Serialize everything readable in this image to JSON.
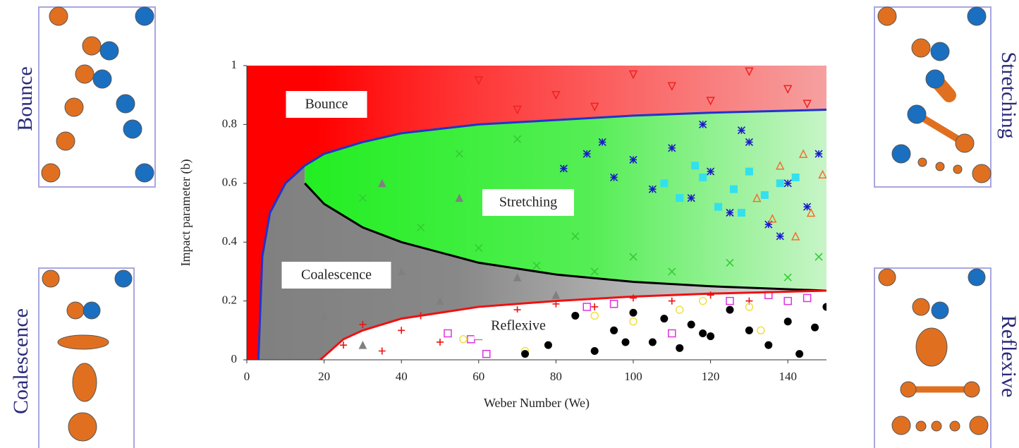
{
  "chart_data": {
    "type": "scatter",
    "xlabel": "Weber Number (We)",
    "ylabel": "Impact parameter (b)",
    "xlim": [
      0,
      150
    ],
    "ylim": [
      0,
      1
    ],
    "xticks": [
      0,
      20,
      40,
      60,
      80,
      100,
      120,
      140
    ],
    "yticks": [
      0,
      0.2,
      0.4,
      0.6,
      0.8,
      1
    ],
    "annotations": [
      "Bounce",
      "Stretching",
      "Coalescence",
      "Reflexive"
    ],
    "curves": [
      {
        "color": "#2233cc",
        "x": [
          3,
          4,
          6,
          10,
          15,
          20,
          30,
          40,
          60,
          80,
          100,
          120,
          150
        ],
        "y": [
          0,
          0.35,
          0.5,
          0.6,
          0.66,
          0.7,
          0.74,
          0.77,
          0.8,
          0.815,
          0.83,
          0.84,
          0.85
        ]
      },
      {
        "color": "#000000",
        "x": [
          15,
          20,
          30,
          40,
          60,
          80,
          100,
          120,
          150
        ],
        "y": [
          0.6,
          0.53,
          0.45,
          0.4,
          0.33,
          0.29,
          0.265,
          0.25,
          0.235
        ]
      },
      {
        "color": "#ee1111",
        "x": [
          19,
          25,
          30,
          40,
          60,
          80,
          100,
          120,
          150
        ],
        "y": [
          0,
          0.07,
          0.1,
          0.14,
          0.18,
          0.2,
          0.215,
          0.225,
          0.235
        ]
      }
    ],
    "groups": [
      {
        "color": "#ee2222",
        "marker": "triangle-down",
        "filled": false,
        "x": [
          60,
          80,
          100,
          120,
          140,
          70,
          110,
          130,
          145,
          90
        ],
        "y": [
          0.95,
          0.9,
          0.97,
          0.88,
          0.92,
          0.85,
          0.93,
          0.98,
          0.87,
          0.86
        ]
      },
      {
        "color": "#808080",
        "marker": "triangle",
        "filled": true,
        "x": [
          10,
          20,
          30,
          40,
          50,
          60,
          70,
          80,
          35,
          55
        ],
        "y": [
          0.3,
          0.15,
          0.05,
          0.3,
          0.2,
          0.08,
          0.28,
          0.22,
          0.6,
          0.55
        ]
      },
      {
        "color": "#33cc33",
        "marker": "cross",
        "filled": false,
        "x": [
          30,
          45,
          60,
          75,
          90,
          100,
          110,
          125,
          140,
          148,
          55,
          70,
          85
        ],
        "y": [
          0.55,
          0.45,
          0.38,
          0.32,
          0.3,
          0.35,
          0.3,
          0.33,
          0.28,
          0.35,
          0.7,
          0.75,
          0.42
        ]
      },
      {
        "color": "#1a1acc",
        "marker": "star",
        "filled": false,
        "x": [
          82,
          88,
          95,
          100,
          105,
          110,
          115,
          120,
          125,
          130,
          135,
          140,
          145,
          148,
          92,
          118,
          128,
          138
        ],
        "y": [
          0.65,
          0.7,
          0.62,
          0.68,
          0.58,
          0.72,
          0.55,
          0.64,
          0.5,
          0.74,
          0.46,
          0.6,
          0.52,
          0.7,
          0.74,
          0.8,
          0.78,
          0.42
        ]
      },
      {
        "color": "#33e0ee",
        "marker": "square",
        "filled": true,
        "x": [
          108,
          112,
          118,
          122,
          126,
          130,
          134,
          138,
          142,
          116,
          128
        ],
        "y": [
          0.6,
          0.55,
          0.62,
          0.52,
          0.58,
          0.64,
          0.56,
          0.6,
          0.62,
          0.66,
          0.5
        ]
      },
      {
        "color": "#f07030",
        "marker": "triangle",
        "filled": false,
        "x": [
          132,
          138,
          142,
          146,
          149,
          144,
          136
        ],
        "y": [
          0.55,
          0.66,
          0.42,
          0.5,
          0.63,
          0.7,
          0.48
        ]
      },
      {
        "color": "#ee1111",
        "marker": "plus",
        "filled": false,
        "x": [
          25,
          30,
          35,
          40,
          45,
          50,
          60,
          70,
          80,
          90,
          100,
          110,
          120,
          130
        ],
        "y": [
          0.05,
          0.12,
          0.03,
          0.1,
          0.15,
          0.06,
          0.13,
          0.17,
          0.19,
          0.18,
          0.21,
          0.2,
          0.22,
          0.2
        ]
      },
      {
        "color": "#dd33dd",
        "marker": "square",
        "filled": false,
        "x": [
          52,
          58,
          62,
          88,
          95,
          110,
          125,
          135,
          140,
          145
        ],
        "y": [
          0.09,
          0.07,
          0.02,
          0.18,
          0.19,
          0.09,
          0.2,
          0.22,
          0.2,
          0.21
        ]
      },
      {
        "color": "#f0e040",
        "marker": "circle",
        "filled": false,
        "x": [
          56,
          72,
          78,
          90,
          100,
          112,
          118,
          130,
          133
        ],
        "y": [
          0.07,
          0.03,
          0.14,
          0.15,
          0.13,
          0.17,
          0.2,
          0.18,
          0.1
        ]
      },
      {
        "color": "#000000",
        "marker": "circle",
        "filled": true,
        "x": [
          72,
          78,
          85,
          90,
          95,
          100,
          105,
          108,
          112,
          115,
          120,
          125,
          130,
          135,
          140,
          143,
          147,
          150,
          98,
          118
        ],
        "y": [
          0.02,
          0.05,
          0.15,
          0.03,
          0.1,
          0.16,
          0.06,
          0.14,
          0.04,
          0.12,
          0.08,
          0.17,
          0.1,
          0.05,
          0.13,
          0.02,
          0.11,
          0.18,
          0.06,
          0.09
        ]
      }
    ]
  },
  "side_panels": [
    {
      "label": "Bounce"
    },
    {
      "label": "Stretching"
    },
    {
      "label": "Coalescence"
    },
    {
      "label": "Reflexive"
    }
  ]
}
